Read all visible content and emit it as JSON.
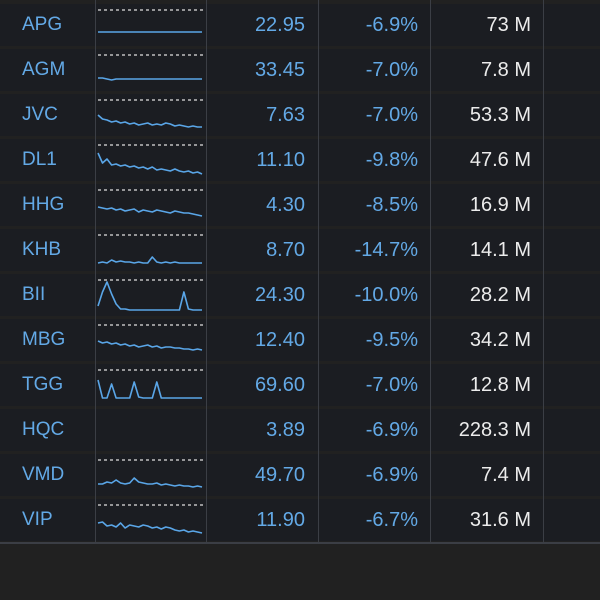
{
  "colors": {
    "background": "#212121",
    "row_background": "#1b1d22",
    "accent_blue": "#63a9e6",
    "volume_text": "#ececec",
    "sparkline": "#5aa6e8",
    "reference_line": "#e0e0e0"
  },
  "rows": [
    {
      "symbol": "APG",
      "price": "22.95",
      "change": "-6.9%",
      "volume": "73 M",
      "sparkline": [
        10,
        10,
        10,
        10,
        10,
        10,
        10,
        10,
        10,
        10,
        10,
        10,
        10,
        10,
        10,
        10,
        10,
        10,
        10,
        10,
        10,
        10,
        10,
        10
      ]
    },
    {
      "symbol": "AGM",
      "price": "33.45",
      "change": "-7.0%",
      "volume": "7.8 M",
      "sparkline": [
        9,
        9,
        8,
        7,
        8,
        8,
        8,
        8,
        8,
        8,
        8,
        8,
        8,
        8,
        8,
        8,
        8,
        8,
        8,
        8,
        8,
        8,
        8,
        8
      ]
    },
    {
      "symbol": "JVC",
      "price": "7.63",
      "change": "-7.0%",
      "volume": "53.3 M",
      "sparkline": [
        17,
        13,
        12,
        10,
        11,
        9,
        10,
        8,
        9,
        7,
        8,
        9,
        7,
        8,
        7,
        9,
        8,
        6,
        7,
        6,
        5,
        6,
        5,
        5
      ]
    },
    {
      "symbol": "DL1",
      "price": "11.10",
      "change": "-9.8%",
      "volume": "47.6 M",
      "sparkline": [
        24,
        14,
        18,
        12,
        13,
        11,
        12,
        10,
        11,
        9,
        10,
        8,
        10,
        7,
        8,
        7,
        6,
        8,
        6,
        5,
        6,
        4,
        5,
        3
      ]
    },
    {
      "symbol": "HHG",
      "price": "4.30",
      "change": "-8.5%",
      "volume": "16.9 M",
      "sparkline": [
        15,
        14,
        13,
        14,
        12,
        13,
        11,
        12,
        13,
        10,
        12,
        11,
        10,
        12,
        11,
        10,
        9,
        11,
        10,
        9,
        9,
        8,
        7,
        6
      ]
    },
    {
      "symbol": "KHB",
      "price": "8.70",
      "change": "-14.7%",
      "volume": "14.1 M",
      "sparkline": [
        4,
        5,
        4,
        7,
        5,
        6,
        5,
        5,
        4,
        5,
        4,
        4,
        10,
        5,
        4,
        5,
        4,
        5,
        4,
        4,
        4,
        4,
        4,
        4
      ]
    },
    {
      "symbol": "BII",
      "price": "24.30",
      "change": "-10.0%",
      "volume": "28.2 M",
      "sparkline": [
        6,
        20,
        30,
        18,
        8,
        3,
        3,
        2,
        2,
        2,
        2,
        2,
        2,
        2,
        2,
        2,
        2,
        2,
        2,
        20,
        3,
        2,
        2,
        2
      ]
    },
    {
      "symbol": "MBG",
      "price": "12.40",
      "change": "-9.5%",
      "volume": "34.2 M",
      "sparkline": [
        16,
        14,
        15,
        13,
        14,
        12,
        13,
        11,
        12,
        10,
        11,
        12,
        10,
        11,
        9,
        10,
        10,
        9,
        9,
        8,
        8,
        7,
        8,
        7
      ]
    },
    {
      "symbol": "TGG",
      "price": "69.60",
      "change": "-7.0%",
      "volume": "12.8 M",
      "sparkline": [
        22,
        4,
        4,
        18,
        4,
        4,
        4,
        4,
        20,
        5,
        4,
        4,
        4,
        20,
        4,
        4,
        4,
        4,
        4,
        4,
        4,
        4,
        4,
        4
      ]
    },
    {
      "symbol": "HQC",
      "price": "3.89",
      "change": "-6.9%",
      "volume": "228.3 M",
      "sparkline": []
    },
    {
      "symbol": "VMD",
      "price": "49.70",
      "change": "-6.9%",
      "volume": "7.4 M",
      "sparkline": [
        8,
        8,
        10,
        9,
        12,
        9,
        8,
        9,
        14,
        10,
        9,
        8,
        8,
        9,
        7,
        8,
        7,
        6,
        7,
        6,
        6,
        5,
        6,
        5
      ]
    },
    {
      "symbol": "VIP",
      "price": "11.90",
      "change": "-6.7%",
      "volume": "31.6 M",
      "sparkline": [
        14,
        15,
        11,
        12,
        10,
        14,
        9,
        12,
        11,
        10,
        12,
        11,
        9,
        10,
        8,
        10,
        9,
        7,
        6,
        7,
        5,
        6,
        5,
        4
      ]
    }
  ]
}
